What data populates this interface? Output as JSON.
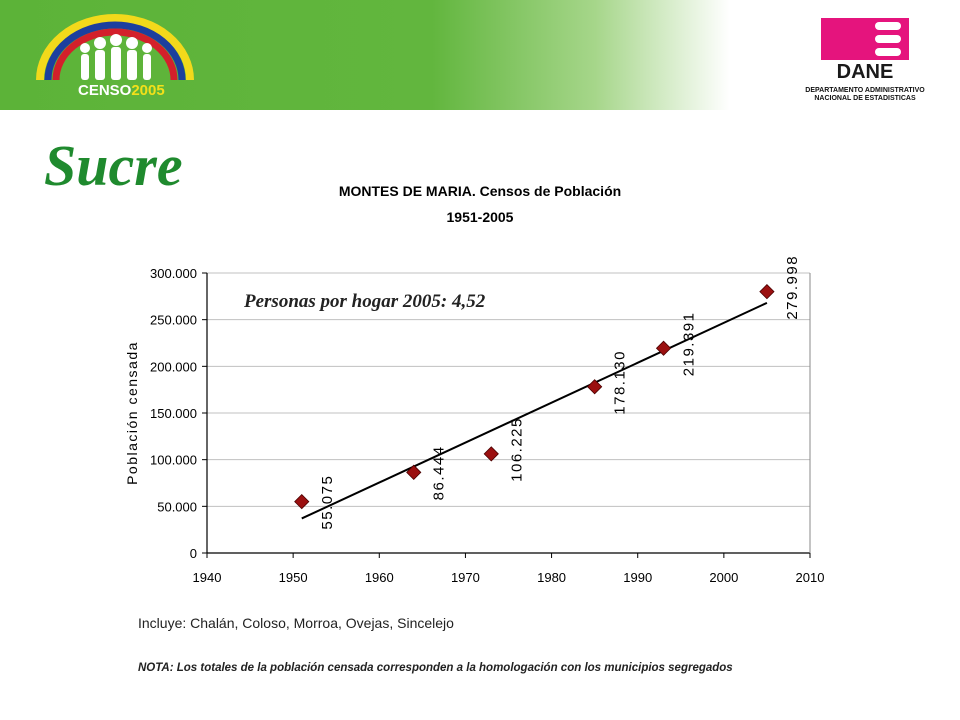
{
  "header": {
    "censo_logo_text_main": "CENSO",
    "censo_logo_text_year": "2005",
    "dane_logo_text": "DANE",
    "dane_caption_line1": "DEPARTAMENTO ADMINISTRATIVO",
    "dane_caption_line2": "NACIONAL DE ESTADISTICAS"
  },
  "region_title": "Sucre",
  "chart_data": {
    "type": "scatter",
    "title": "MONTES DE MARIA. Censos de Población",
    "subtitle": "1951-2005",
    "xlabel": "",
    "ylabel": "Población censada",
    "xlim": [
      1940,
      2010
    ],
    "ylim": [
      0,
      300000
    ],
    "x_ticks": [
      1940,
      1950,
      1960,
      1970,
      1980,
      1990,
      2000,
      2010
    ],
    "y_ticks": [
      0,
      50000,
      100000,
      150000,
      200000,
      250000,
      300000
    ],
    "y_tick_labels": [
      "0",
      "50.000",
      "100.000",
      "150.000",
      "200.000",
      "250.000",
      "300.000"
    ],
    "grid": true,
    "series": [
      {
        "x": [
          1951,
          1964,
          1973,
          1985,
          1993,
          2005
        ],
        "y": [
          55075,
          86444,
          106225,
          178130,
          219391,
          279998
        ],
        "labels": [
          "55.075",
          "86.444",
          "106.225",
          "178.130",
          "219.391",
          "279.998"
        ]
      }
    ],
    "trendline": {
      "x": [
        1951,
        2005
      ],
      "y": [
        37000,
        268000
      ]
    },
    "annotation": "Personas por hogar 2005: 4,52",
    "colors": {
      "marker": "#9b1010",
      "line": "#000000",
      "grid": "#c0c0c0"
    }
  },
  "footnote": "Incluye: Chalán, Coloso, Morroa, Ovejas, Sincelejo",
  "nota": "NOTA: Los totales de la población censada corresponden a la homologación con los municipios segregados"
}
